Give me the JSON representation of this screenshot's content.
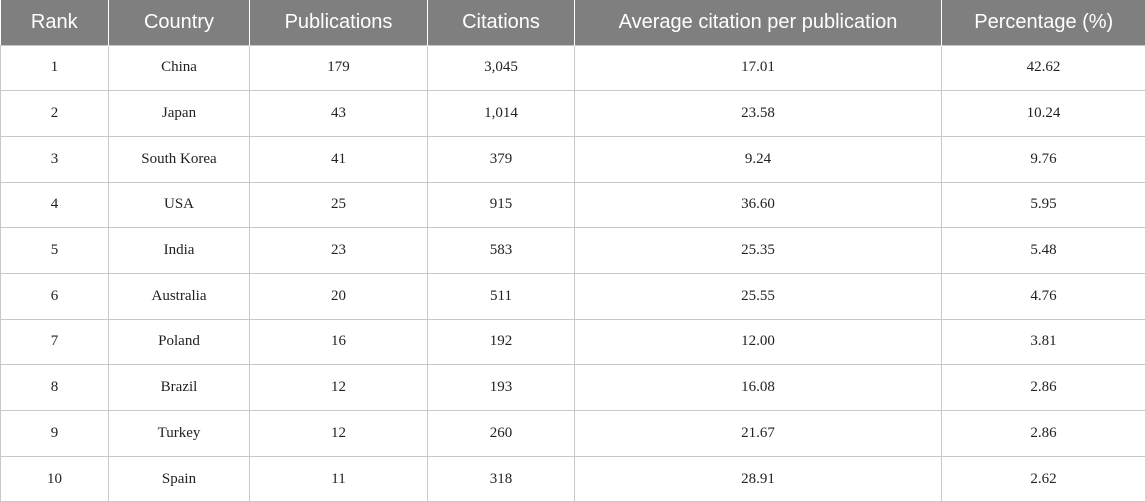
{
  "table": {
    "headers": [
      "Rank",
      "Country",
      "Publications",
      "Citations",
      "Average citation per publication",
      "Percentage (%)"
    ],
    "rows": [
      [
        "1",
        "China",
        "179",
        "3,045",
        "17.01",
        "42.62"
      ],
      [
        "2",
        "Japan",
        "43",
        "1,014",
        "23.58",
        "10.24"
      ],
      [
        "3",
        "South Korea",
        "41",
        "379",
        "9.24",
        "9.76"
      ],
      [
        "4",
        "USA",
        "25",
        "915",
        "36.60",
        "5.95"
      ],
      [
        "5",
        "India",
        "23",
        "583",
        "25.35",
        "5.48"
      ],
      [
        "6",
        "Australia",
        "20",
        "511",
        "25.55",
        "4.76"
      ],
      [
        "7",
        "Poland",
        "16",
        "192",
        "12.00",
        "3.81"
      ],
      [
        "8",
        "Brazil",
        "12",
        "193",
        "16.08",
        "2.86"
      ],
      [
        "9",
        "Turkey",
        "12",
        "260",
        "21.67",
        "2.86"
      ],
      [
        "10",
        "Spain",
        "11",
        "318",
        "28.91",
        "2.62"
      ]
    ]
  }
}
